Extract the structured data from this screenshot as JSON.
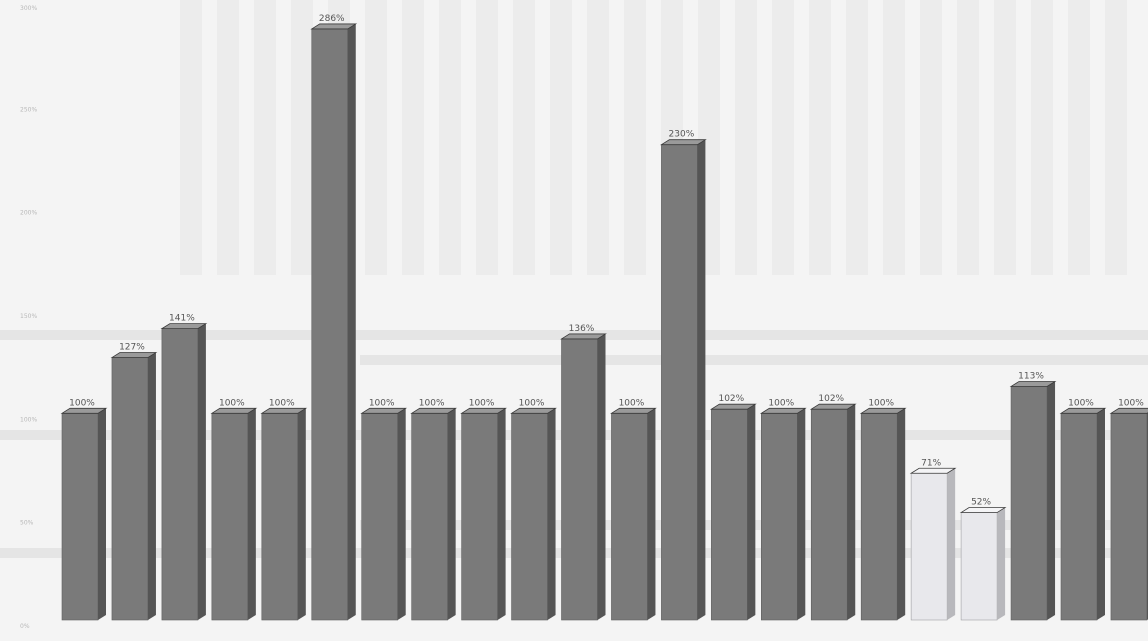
{
  "chart_data": {
    "type": "bar",
    "categories": [
      "",
      "",
      "",
      "",
      "",
      "",
      "",
      "",
      "",
      "",
      "",
      "",
      "",
      "",
      "",
      "",
      "",
      "",
      "",
      "",
      "",
      "",
      ""
    ],
    "values": [
      100,
      127,
      141,
      100,
      100,
      286,
      100,
      100,
      100,
      100,
      136,
      100,
      230,
      102,
      100,
      102,
      100,
      71,
      52,
      113,
      100,
      100,
      100
    ],
    "labels": [
      "100%",
      "127%",
      "141%",
      "100%",
      "100%",
      "286%",
      "100%",
      "100%",
      "100%",
      "100%",
      "136%",
      "100%",
      "230%",
      "102%",
      "100%",
      "102%",
      "100%",
      "71%",
      "52%",
      "113%",
      "100%",
      "100%",
      "100%"
    ],
    "highlight": [
      false,
      false,
      false,
      false,
      false,
      false,
      false,
      false,
      false,
      false,
      false,
      false,
      false,
      false,
      false,
      false,
      false,
      true,
      true,
      false,
      false,
      false,
      false
    ],
    "ylim": [
      0,
      300
    ],
    "yticks": [
      "0%",
      "50%",
      "100%",
      "150%",
      "200%",
      "250%",
      "300%"
    ],
    "title": "",
    "xlabel": "",
    "ylabel": "",
    "grid": false,
    "legend": "none",
    "colors": {
      "bar_front": "#7a7a7a",
      "bar_side": "#555555",
      "bar_top": "#9a9a9a",
      "bar_light_front": "#e8e8ec",
      "bar_light_side": "#b8b8bc",
      "bar_light_top": "#f4f4f6",
      "label_text": "#555555",
      "background": "#f4f4f4"
    }
  }
}
